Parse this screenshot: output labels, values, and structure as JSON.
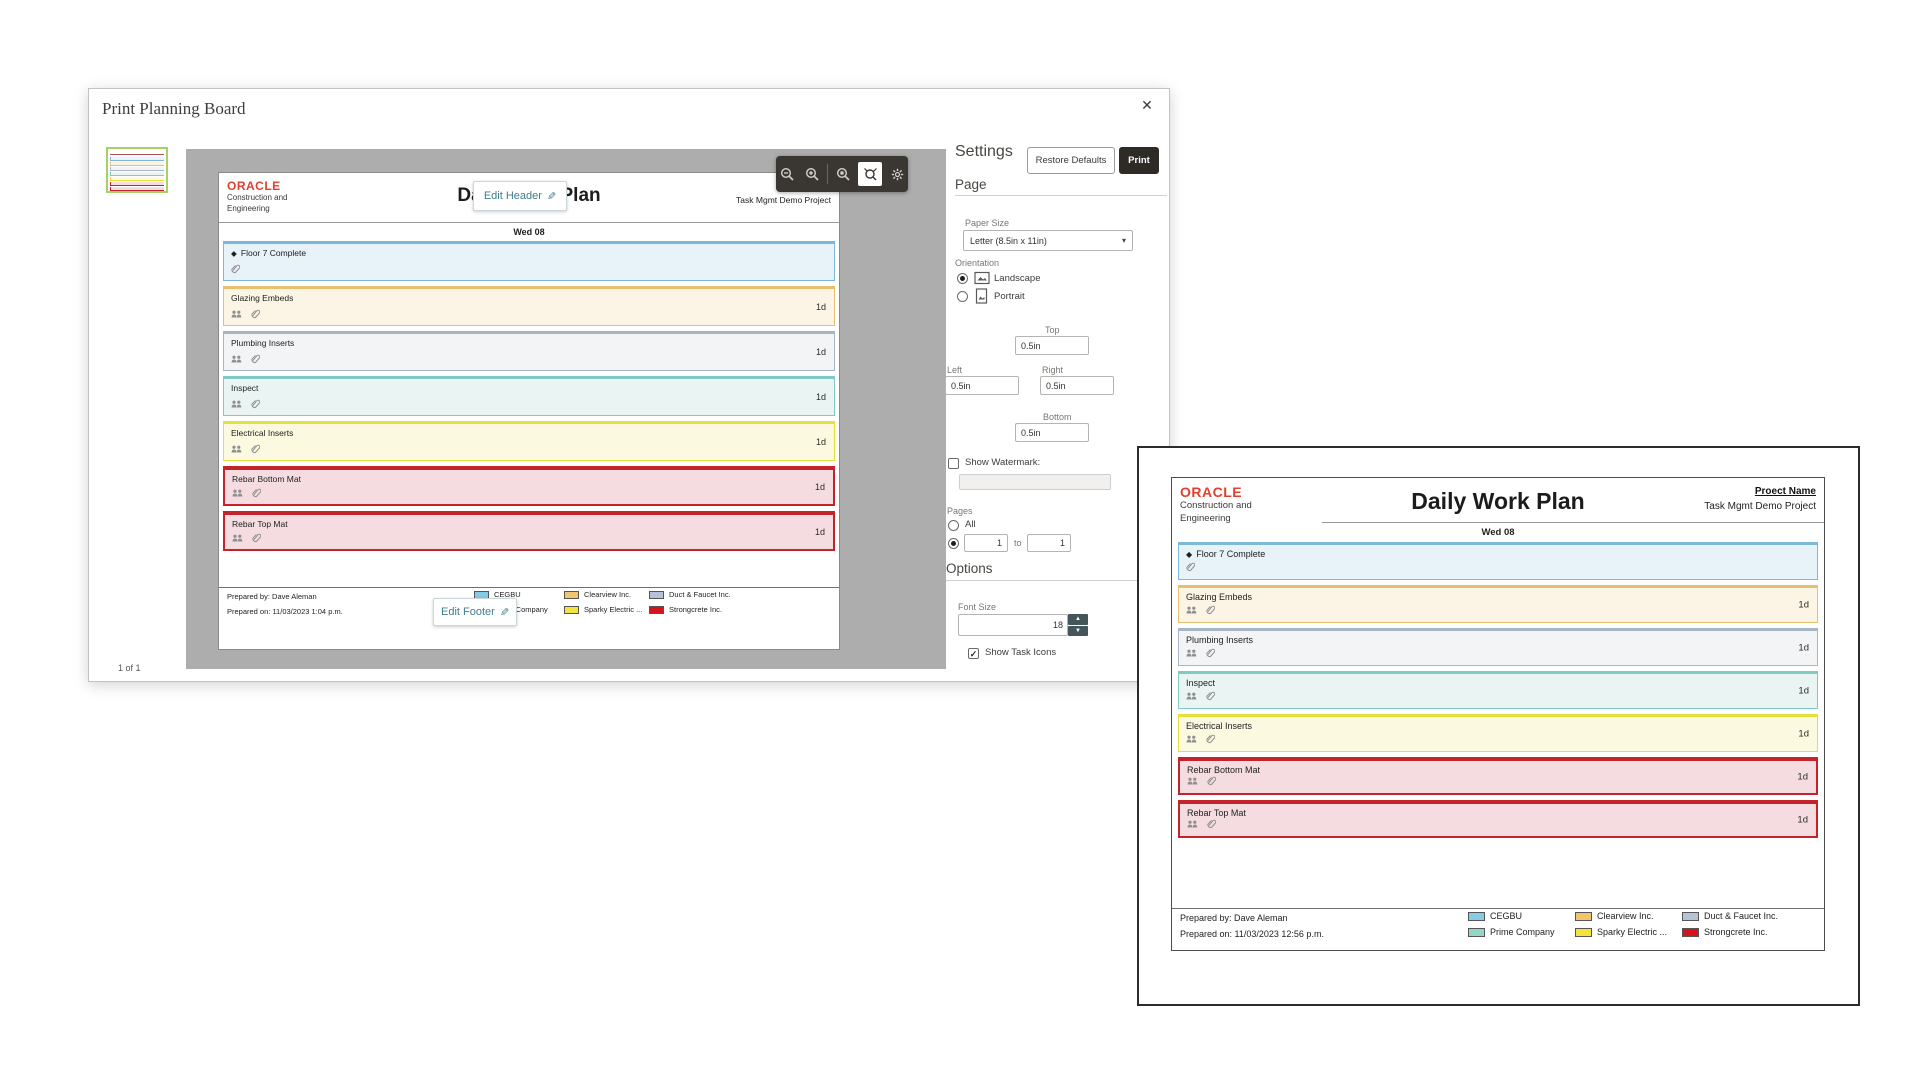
{
  "dialog": {
    "title": "Print Planning Board",
    "pagination": "1 of 1"
  },
  "toolbar": {
    "icons": [
      {
        "name": "zoom-out-icon",
        "active": false
      },
      {
        "name": "zoom-in-icon",
        "active": false
      },
      {
        "name": "zoom-actual-size-icon",
        "active": false
      },
      {
        "name": "fit-to-window-icon",
        "active": true
      },
      {
        "name": "gear-icon",
        "active": false
      }
    ]
  },
  "preview": {
    "edit_header_label": "Edit Header",
    "edit_footer_label": "Edit Footer"
  },
  "settings": {
    "heading": "Settings",
    "restore_defaults_label": "Restore Defaults",
    "print_label": "Print",
    "page_section": "Page",
    "paper_size_label": "Paper Size",
    "paper_size_value": "Letter (8.5in x 11in)",
    "orientation_label": "Orientation",
    "landscape_label": "Landscape",
    "portrait_label": "Portrait",
    "orientation_selected": "Landscape",
    "margins": {
      "top_label": "Top",
      "top": "0.5in",
      "left_label": "Left",
      "left": "0.5in",
      "right_label": "Right",
      "right": "0.5in",
      "bottom_label": "Bottom",
      "bottom": "0.5in"
    },
    "watermark_label": "Show Watermark:",
    "watermark_checked": false,
    "watermark_value": "",
    "pages_label": "Pages",
    "pages_all_label": "All",
    "pages_selected": "range",
    "pages_from": "1",
    "pages_to_label": "to",
    "pages_to": "1",
    "options_section": "Options",
    "font_size_label": "Font Size",
    "font_size_value": "18",
    "show_task_icons_label": "Show Task Icons",
    "show_task_icons_checked": true
  },
  "document": {
    "logo": "ORACLE",
    "logo_color": "#e2402f",
    "org_line1": "Construction and",
    "org_line2": "Engineering",
    "title": "Daily Work Plan",
    "project_label": "Proect Name",
    "project_name": "Task Mgmt Demo Project",
    "date": "Wed 08",
    "prepared_by": "Prepared by: Dave Aleman",
    "prepared_on_dialog": "Prepared on: 11/03/2023 1:04 p.m.",
    "prepared_on_window": "Prepared on: 11/03/2023 12:56 p.m.",
    "tasks": [
      {
        "name": "Floor 7 Complete",
        "duration": "",
        "milestone": true,
        "icons": [
          "attachment"
        ],
        "fill": "#e8f2f9",
        "border": "#7db8da",
        "highlight": false
      },
      {
        "name": "Glazing Embeds",
        "duration": "1d",
        "milestone": false,
        "icons": [
          "crew",
          "attachment"
        ],
        "fill": "#fcf5e6",
        "border": "#e8bf6e",
        "highlight": false
      },
      {
        "name": "Plumbing Inserts",
        "duration": "1d",
        "milestone": false,
        "icons": [
          "crew",
          "attachment"
        ],
        "fill": "#f2f4f6",
        "border": "#a8b6c3",
        "highlight": false
      },
      {
        "name": "Inspect",
        "duration": "1d",
        "milestone": false,
        "icons": [
          "crew",
          "attachment"
        ],
        "fill": "#eaf5f3",
        "border": "#7fcbc1",
        "highlight": false
      },
      {
        "name": "Electrical Inserts",
        "duration": "1d",
        "milestone": false,
        "icons": [
          "crew",
          "attachment"
        ],
        "fill": "#fbf9e0",
        "border": "#e6e03a",
        "highlight": false
      },
      {
        "name": "Rebar Bottom Mat",
        "duration": "1d",
        "milestone": false,
        "icons": [
          "crew",
          "attachment"
        ],
        "fill": "#f5dce0",
        "border": "#c3242b",
        "highlight": true
      },
      {
        "name": "Rebar Top Mat",
        "duration": "1d",
        "milestone": false,
        "icons": [
          "crew",
          "attachment"
        ],
        "fill": "#f5dce0",
        "border": "#c3242b",
        "highlight": true
      }
    ],
    "legend": [
      {
        "label": "CEGBU",
        "color": "#85cce4"
      },
      {
        "label": "Prime Company",
        "color": "#93d6c5"
      },
      {
        "label": "Clearview Inc.",
        "color": "#f1c46d"
      },
      {
        "label": "Sparky Electric ...",
        "color": "#f4e23e"
      },
      {
        "label": "Duct & Faucet Inc.",
        "color": "#b6c2d6"
      },
      {
        "label": "Strongcrete Inc.",
        "color": "#d4131b"
      }
    ]
  }
}
